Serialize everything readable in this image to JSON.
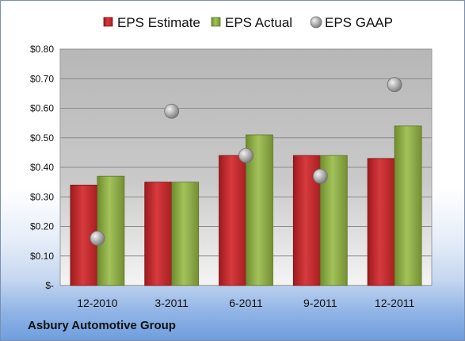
{
  "chart_data": {
    "type": "bar",
    "categories": [
      "12-2010",
      "3-2011",
      "6-2011",
      "9-2011",
      "12-2011"
    ],
    "series": [
      {
        "name": "EPS Estimate",
        "kind": "bar",
        "color": "#c0282c",
        "values": [
          0.34,
          0.35,
          0.44,
          0.44,
          0.43
        ]
      },
      {
        "name": "EPS Actual",
        "kind": "bar",
        "color": "#8fae45",
        "values": [
          0.37,
          0.35,
          0.51,
          0.44,
          0.54
        ]
      },
      {
        "name": "EPS GAAP",
        "kind": "scatter",
        "color": "#a9a9a9",
        "values": [
          0.16,
          0.59,
          0.44,
          0.37,
          0.68
        ]
      }
    ],
    "y_ticks": [
      {
        "value": 0.0,
        "label": "$-"
      },
      {
        "value": 0.1,
        "label": "$0.10"
      },
      {
        "value": 0.2,
        "label": "$0.20"
      },
      {
        "value": 0.3,
        "label": "$0.30"
      },
      {
        "value": 0.4,
        "label": "$0.40"
      },
      {
        "value": 0.5,
        "label": "$0.50"
      },
      {
        "value": 0.6,
        "label": "$0.60"
      },
      {
        "value": 0.7,
        "label": "$0.70"
      },
      {
        "value": 0.8,
        "label": "$0.80"
      }
    ],
    "ylim": [
      0,
      0.8
    ],
    "grid": true,
    "legend_position": "top",
    "company": "Asbury Automotive Group"
  }
}
